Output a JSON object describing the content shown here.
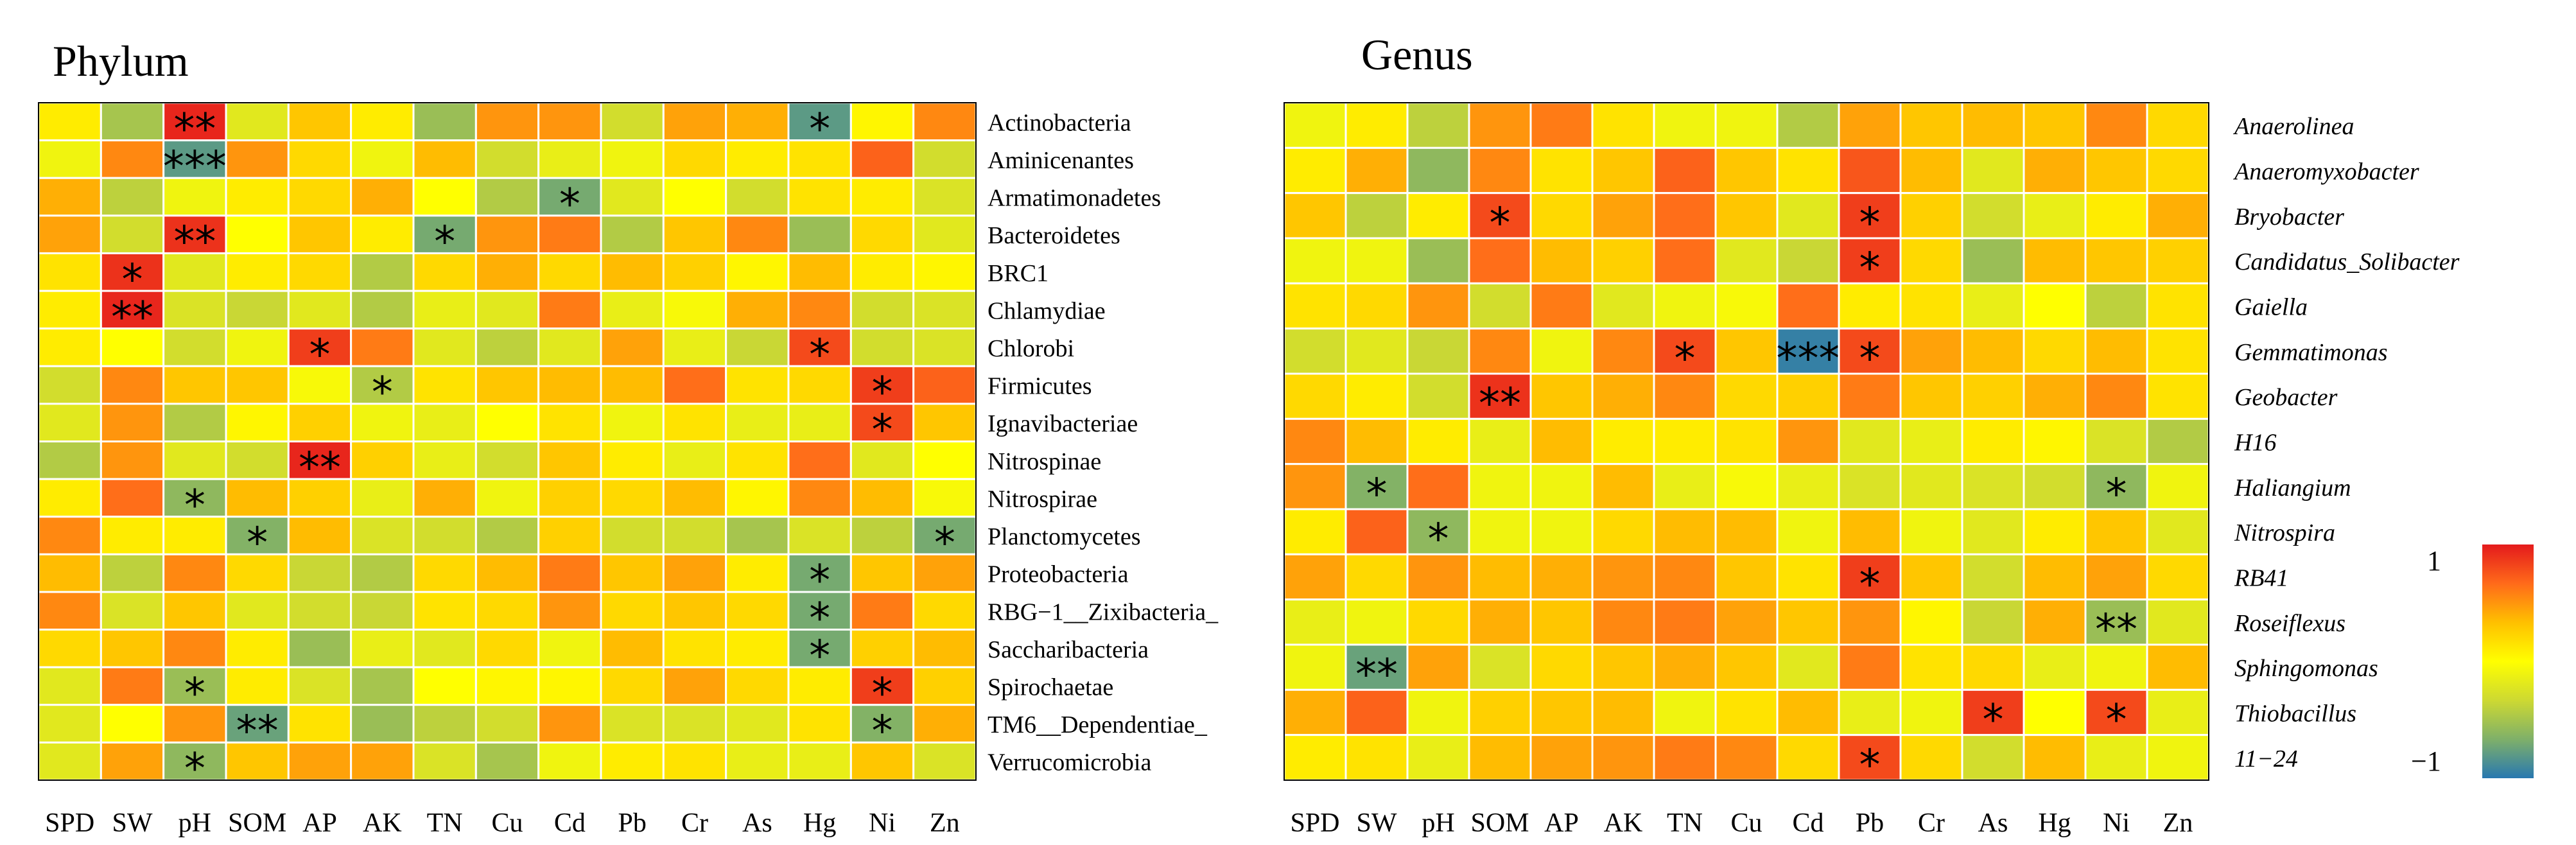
{
  "figure": {
    "colorbar": {
      "max_label": "1",
      "min_label": "−1",
      "colors": [
        "#2878b0",
        "#7fb069",
        "#cdd932",
        "#ffff00",
        "#ffc000",
        "#ff6a1a",
        "#e41a1c"
      ]
    }
  },
  "chart_data": [
    {
      "type": "heatmap",
      "title": "Phylum",
      "columns": [
        "SPD",
        "SW",
        "pH",
        "SOM",
        "AP",
        "AK",
        "TN",
        "Cu",
        "Cd",
        "Pb",
        "Cr",
        "As",
        "Hg",
        "Ni",
        "Zn"
      ],
      "rows": [
        "Actinobacteria",
        "Aminicenantes",
        "Armatimonadetes",
        "Bacteroidetes",
        "BRC1",
        "Chlamydiae",
        "Chlorobi",
        "Firmicutes",
        "Ignavibacteriae",
        "Nitrospinae",
        "Nitrospirae",
        "Planctomycetes",
        "Proteobacteria",
        "RBG−1__Zixibacteria_",
        "Saccharibacteria",
        "Spirochaetae",
        "TM6__Dependentiae_",
        "Verrucomicrobia"
      ],
      "italic_rows": false,
      "value_range": [
        -1,
        1
      ],
      "values": [
        [
          0.1,
          -0.5,
          0.95,
          -0.2,
          0.3,
          0.1,
          -0.55,
          0.5,
          0.5,
          -0.3,
          0.45,
          0.4,
          -0.8,
          0.05,
          0.55
        ],
        [
          -0.1,
          0.55,
          -0.8,
          0.5,
          0.2,
          -0.1,
          0.35,
          -0.3,
          -0.15,
          -0.1,
          0.2,
          0.1,
          0.15,
          0.7,
          -0.3
        ],
        [
          0.4,
          -0.4,
          -0.1,
          0.1,
          0.2,
          0.4,
          0.0,
          -0.45,
          -0.7,
          -0.2,
          0.0,
          -0.3,
          0.15,
          0.1,
          -0.25
        ],
        [
          0.45,
          -0.3,
          0.9,
          0.0,
          0.3,
          0.1,
          -0.7,
          0.5,
          0.6,
          -0.45,
          0.3,
          0.55,
          -0.55,
          0.2,
          -0.2
        ],
        [
          0.15,
          0.9,
          -0.2,
          0.1,
          0.2,
          -0.45,
          0.2,
          0.4,
          0.2,
          0.35,
          0.25,
          0.05,
          0.35,
          0.1,
          0.05
        ],
        [
          0.1,
          0.95,
          -0.25,
          -0.35,
          -0.2,
          -0.45,
          -0.15,
          -0.2,
          0.6,
          -0.15,
          -0.05,
          0.4,
          0.55,
          -0.3,
          -0.25
        ],
        [
          0.1,
          0.0,
          -0.3,
          -0.1,
          0.85,
          0.6,
          -0.2,
          -0.4,
          -0.2,
          0.45,
          -0.15,
          -0.35,
          0.8,
          -0.3,
          -0.25
        ],
        [
          -0.3,
          0.55,
          0.3,
          0.3,
          -0.05,
          -0.45,
          0.15,
          0.3,
          0.35,
          0.35,
          0.65,
          0.15,
          0.2,
          0.85,
          0.7
        ],
        [
          -0.2,
          0.5,
          -0.45,
          0.05,
          0.25,
          -0.1,
          -0.15,
          0.0,
          0.15,
          -0.1,
          0.15,
          -0.15,
          -0.15,
          0.8,
          0.3
        ],
        [
          -0.45,
          0.5,
          -0.2,
          -0.3,
          0.95,
          0.25,
          -0.15,
          -0.3,
          0.3,
          0.1,
          -0.15,
          0.15,
          0.65,
          -0.2,
          0.0
        ],
        [
          0.1,
          0.65,
          -0.6,
          0.35,
          0.25,
          -0.15,
          0.4,
          -0.1,
          0.25,
          0.2,
          0.35,
          0.05,
          0.55,
          0.35,
          -0.05
        ],
        [
          0.55,
          0.1,
          0.1,
          -0.65,
          0.35,
          -0.25,
          -0.3,
          -0.45,
          0.25,
          -0.3,
          -0.3,
          -0.5,
          -0.25,
          -0.4,
          -0.7
        ],
        [
          0.35,
          -0.4,
          0.55,
          0.2,
          -0.35,
          -0.45,
          0.2,
          0.35,
          0.6,
          0.3,
          0.45,
          0.1,
          -0.7,
          0.3,
          0.45
        ],
        [
          0.55,
          -0.25,
          0.3,
          -0.2,
          -0.3,
          -0.35,
          0.15,
          0.2,
          0.5,
          0.2,
          0.3,
          0.2,
          -0.7,
          0.6,
          0.2
        ],
        [
          0.2,
          0.3,
          0.55,
          0.1,
          -0.55,
          -0.15,
          -0.2,
          0.2,
          -0.1,
          0.35,
          0.15,
          0.1,
          -0.7,
          0.25,
          0.35
        ],
        [
          -0.2,
          0.6,
          -0.55,
          0.1,
          -0.25,
          -0.5,
          0.0,
          0.05,
          0.05,
          0.2,
          0.45,
          0.2,
          0.1,
          0.85,
          0.25
        ],
        [
          -0.2,
          0.0,
          0.5,
          -0.75,
          0.15,
          -0.55,
          -0.4,
          -0.3,
          0.5,
          -0.25,
          -0.25,
          -0.2,
          0.15,
          -0.65,
          0.4
        ],
        [
          -0.2,
          0.45,
          -0.6,
          0.3,
          0.45,
          0.45,
          -0.25,
          -0.5,
          -0.1,
          0.1,
          0.15,
          -0.15,
          -0.15,
          0.3,
          -0.25
        ]
      ],
      "significance": [
        [
          "",
          "",
          "**",
          "",
          "",
          "",
          "",
          "",
          "",
          "",
          "",
          "",
          "*",
          "",
          ""
        ],
        [
          "",
          "",
          "***",
          "",
          "",
          "",
          "",
          "",
          "",
          "",
          "",
          "",
          "",
          "",
          ""
        ],
        [
          "",
          "",
          "",
          "",
          "",
          "",
          "",
          "",
          "*",
          "",
          "",
          "",
          "",
          "",
          ""
        ],
        [
          "",
          "",
          "**",
          "",
          "",
          "",
          "*",
          "",
          "",
          "",
          "",
          "",
          "",
          "",
          ""
        ],
        [
          "",
          "*",
          "",
          "",
          "",
          "",
          "",
          "",
          "",
          "",
          "",
          "",
          "",
          "",
          ""
        ],
        [
          "",
          "**",
          "",
          "",
          "",
          "",
          "",
          "",
          "",
          "",
          "",
          "",
          "",
          "",
          ""
        ],
        [
          "",
          "",
          "",
          "",
          "*",
          "",
          "",
          "",
          "",
          "",
          "",
          "",
          "*",
          "",
          ""
        ],
        [
          "",
          "",
          "",
          "",
          "",
          "*",
          "",
          "",
          "",
          "",
          "",
          "",
          "",
          "*",
          ""
        ],
        [
          "",
          "",
          "",
          "",
          "",
          "",
          "",
          "",
          "",
          "",
          "",
          "",
          "",
          "*",
          ""
        ],
        [
          "",
          "",
          "",
          "",
          "**",
          "",
          "",
          "",
          "",
          "",
          "",
          "",
          "",
          "",
          ""
        ],
        [
          "",
          "",
          "*",
          "",
          "",
          "",
          "",
          "",
          "",
          "",
          "",
          "",
          "",
          "",
          ""
        ],
        [
          "",
          "",
          "",
          "*",
          "",
          "",
          "",
          "",
          "",
          "",
          "",
          "",
          "",
          "",
          "*"
        ],
        [
          "",
          "",
          "",
          "",
          "",
          "",
          "",
          "",
          "",
          "",
          "",
          "",
          "*",
          "",
          ""
        ],
        [
          "",
          "",
          "",
          "",
          "",
          "",
          "",
          "",
          "",
          "",
          "",
          "",
          "*",
          "",
          ""
        ],
        [
          "",
          "",
          "",
          "",
          "",
          "",
          "",
          "",
          "",
          "",
          "",
          "",
          "*",
          "",
          ""
        ],
        [
          "",
          "",
          "*",
          "",
          "",
          "",
          "",
          "",
          "",
          "",
          "",
          "",
          "",
          "*",
          ""
        ],
        [
          "",
          "",
          "",
          "**",
          "",
          "",
          "",
          "",
          "",
          "",
          "",
          "",
          "",
          "*",
          ""
        ],
        [
          "",
          "",
          "*",
          "",
          "",
          "",
          "",
          "",
          "",
          "",
          "",
          "",
          "",
          "",
          ""
        ]
      ]
    },
    {
      "type": "heatmap",
      "title": "Genus",
      "columns": [
        "SPD",
        "SW",
        "pH",
        "SOM",
        "AP",
        "AK",
        "TN",
        "Cu",
        "Cd",
        "Pb",
        "Cr",
        "As",
        "Hg",
        "Ni",
        "Zn"
      ],
      "rows": [
        "Anaerolinea",
        "Anaeromyxobacter",
        "Bryobacter",
        "Candidatus_Solibacter",
        "Gaiella",
        "Gemmatimonas",
        "Geobacter",
        "H16",
        "Haliangium",
        "Nitrospira",
        "RB41",
        "Roseiflexus",
        "Sphingomonas",
        "Thiobacillus",
        "11−24"
      ],
      "italic_rows": true,
      "value_range": [
        -1,
        1
      ],
      "values": [
        [
          -0.1,
          0.1,
          -0.4,
          0.5,
          0.6,
          0.15,
          -0.1,
          -0.1,
          -0.45,
          0.45,
          0.3,
          0.35,
          0.3,
          0.55,
          0.2
        ],
        [
          0.1,
          0.4,
          -0.6,
          0.55,
          0.15,
          0.3,
          0.7,
          0.3,
          0.15,
          0.75,
          0.35,
          -0.2,
          0.4,
          0.3,
          0.2
        ],
        [
          0.3,
          -0.4,
          0.1,
          0.8,
          0.2,
          0.45,
          0.65,
          0.3,
          -0.2,
          0.85,
          0.25,
          -0.3,
          -0.15,
          0.1,
          0.4
        ],
        [
          -0.1,
          -0.1,
          -0.55,
          0.65,
          0.35,
          0.25,
          0.65,
          -0.2,
          -0.35,
          0.85,
          0.2,
          -0.55,
          0.35,
          0.3,
          0.25
        ],
        [
          0.15,
          0.2,
          0.5,
          -0.3,
          0.6,
          -0.2,
          -0.1,
          -0.05,
          0.65,
          0.1,
          0.15,
          -0.15,
          0.0,
          -0.4,
          0.15
        ],
        [
          -0.3,
          -0.2,
          -0.35,
          0.55,
          -0.1,
          0.55,
          0.8,
          0.3,
          -0.95,
          0.8,
          0.45,
          0.35,
          0.2,
          0.35,
          0.15
        ],
        [
          0.2,
          0.1,
          -0.3,
          0.9,
          0.3,
          0.4,
          0.55,
          0.2,
          0.25,
          0.6,
          0.3,
          0.25,
          0.4,
          0.55,
          0.15
        ],
        [
          0.55,
          0.35,
          0.1,
          -0.15,
          0.35,
          0.1,
          0.1,
          0.15,
          0.5,
          -0.2,
          -0.15,
          0.1,
          0.05,
          -0.25,
          -0.45
        ],
        [
          0.5,
          -0.65,
          0.65,
          -0.1,
          -0.1,
          0.35,
          -0.15,
          -0.05,
          -0.15,
          -0.25,
          -0.2,
          -0.25,
          -0.3,
          -0.6,
          -0.1
        ],
        [
          0.1,
          0.7,
          -0.6,
          -0.1,
          -0.1,
          0.2,
          0.35,
          0.35,
          -0.1,
          0.35,
          -0.1,
          -0.2,
          0.1,
          0.3,
          -0.2
        ],
        [
          0.45,
          0.2,
          0.5,
          0.35,
          0.4,
          0.5,
          0.55,
          0.3,
          0.15,
          0.85,
          0.3,
          -0.3,
          0.35,
          0.45,
          0.2
        ],
        [
          -0.15,
          -0.1,
          0.2,
          0.4,
          0.3,
          0.55,
          0.6,
          0.45,
          0.3,
          0.5,
          0.05,
          -0.35,
          0.4,
          -0.55,
          -0.2
        ],
        [
          -0.1,
          -0.75,
          0.45,
          -0.25,
          0.2,
          0.3,
          0.4,
          0.3,
          -0.2,
          0.6,
          0.15,
          0.2,
          -0.15,
          -0.1,
          0.35
        ],
        [
          0.4,
          0.7,
          -0.1,
          0.25,
          0.3,
          0.35,
          -0.1,
          0.15,
          0.35,
          -0.15,
          -0.1,
          0.85,
          0.0,
          0.8,
          -0.15
        ],
        [
          0.1,
          0.15,
          -0.15,
          0.35,
          0.45,
          0.5,
          0.6,
          0.55,
          0.2,
          0.8,
          0.2,
          -0.3,
          0.35,
          -0.15,
          -0.1
        ]
      ],
      "significance": [
        [
          "",
          "",
          "",
          "",
          "",
          "",
          "",
          "",
          "",
          "",
          "",
          "",
          "",
          "",
          ""
        ],
        [
          "",
          "",
          "",
          "",
          "",
          "",
          "",
          "",
          "",
          "",
          "",
          "",
          "",
          "",
          ""
        ],
        [
          "",
          "",
          "",
          "*",
          "",
          "",
          "",
          "",
          "",
          "*",
          "",
          "",
          "",
          "",
          ""
        ],
        [
          "",
          "",
          "",
          "",
          "",
          "",
          "",
          "",
          "",
          "*",
          "",
          "",
          "",
          "",
          ""
        ],
        [
          "",
          "",
          "",
          "",
          "",
          "",
          "",
          "",
          "",
          "",
          "",
          "",
          "",
          "",
          ""
        ],
        [
          "",
          "",
          "",
          "",
          "",
          "",
          "*",
          "",
          "***",
          "*",
          "",
          "",
          "",
          "",
          ""
        ],
        [
          "",
          "",
          "",
          "**",
          "",
          "",
          "",
          "",
          "",
          "",
          "",
          "",
          "",
          "",
          ""
        ],
        [
          "",
          "",
          "",
          "",
          "",
          "",
          "",
          "",
          "",
          "",
          "",
          "",
          "",
          "",
          ""
        ],
        [
          "",
          "*",
          "",
          "",
          "",
          "",
          "",
          "",
          "",
          "",
          "",
          "",
          "",
          "*",
          ""
        ],
        [
          "",
          "",
          "*",
          "",
          "",
          "",
          "",
          "",
          "",
          "",
          "",
          "",
          "",
          "",
          ""
        ],
        [
          "",
          "",
          "",
          "",
          "",
          "",
          "",
          "",
          "",
          "*",
          "",
          "",
          "",
          "",
          ""
        ],
        [
          "",
          "",
          "",
          "",
          "",
          "",
          "",
          "",
          "",
          "",
          "",
          "",
          "",
          "**",
          ""
        ],
        [
          "",
          "**",
          "",
          "",
          "",
          "",
          "",
          "",
          "",
          "",
          "",
          "",
          "",
          "",
          ""
        ],
        [
          "",
          "",
          "",
          "",
          "",
          "",
          "",
          "",
          "",
          "",
          "",
          "*",
          "",
          "*",
          ""
        ],
        [
          "",
          "",
          "",
          "",
          "",
          "",
          "",
          "",
          "",
          "*",
          "",
          "",
          "",
          "",
          ""
        ]
      ]
    }
  ]
}
